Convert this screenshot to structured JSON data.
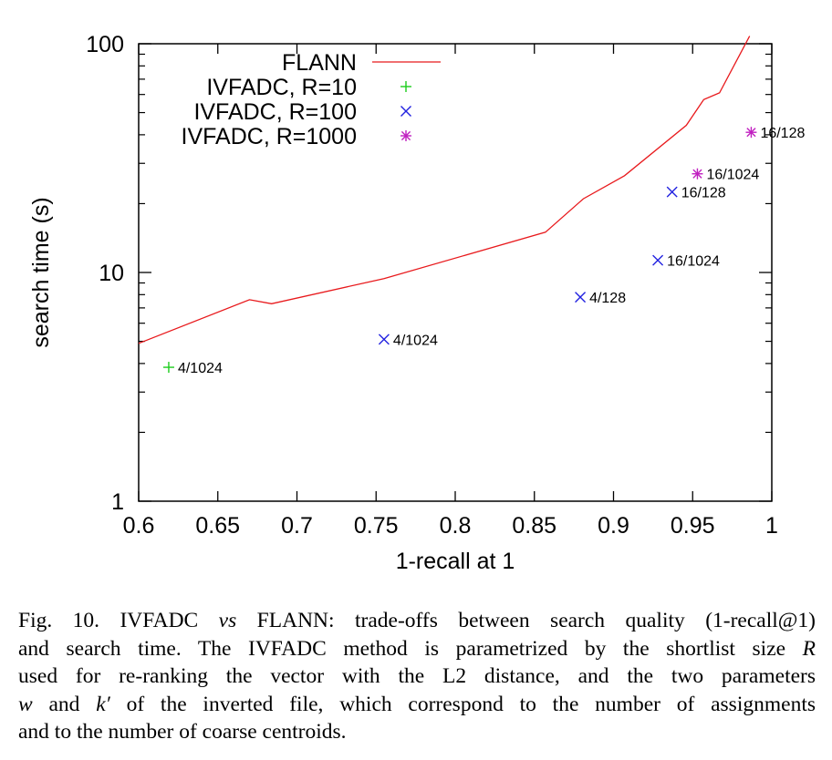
{
  "chart_data": {
    "type": "scatter",
    "xlabel": "1-recall at 1",
    "ylabel": "search time (s)",
    "xlim": [
      0.6,
      1.0
    ],
    "ylim": [
      1,
      100
    ],
    "yscale": "log",
    "grid": false,
    "legend_position": "top-left",
    "x_ticks": [
      "0.6",
      "0.65",
      "0.7",
      "0.75",
      "0.8",
      "0.85",
      "0.9",
      "0.95",
      "1"
    ],
    "x_tick_values": [
      0.6,
      0.65,
      0.7,
      0.75,
      0.8,
      0.85,
      0.9,
      0.95,
      1.0
    ],
    "y_ticks": [
      "1",
      "10",
      "100"
    ],
    "y_tick_values": [
      1,
      10,
      100
    ],
    "series": [
      {
        "name": "FLANN",
        "kind": "line",
        "color": "#e8191c",
        "points": [
          [
            0.6,
            4.9
          ],
          [
            0.67,
            7.6
          ],
          [
            0.684,
            7.3
          ],
          [
            0.755,
            9.4
          ],
          [
            0.857,
            15.0
          ],
          [
            0.881,
            21.0
          ],
          [
            0.907,
            26.5
          ],
          [
            0.946,
            44.0
          ],
          [
            0.957,
            57.0
          ],
          [
            0.967,
            61.0
          ],
          [
            0.986,
            108.0
          ]
        ]
      },
      {
        "name": "IVFADC, R=10",
        "kind": "marker",
        "marker": "plus",
        "color": "#1ccc1c",
        "points": [
          {
            "x": 0.619,
            "y": 3.85,
            "label": "4/1024"
          }
        ]
      },
      {
        "name": "IVFADC, R=100",
        "kind": "marker",
        "marker": "cross",
        "color": "#2222e0",
        "points": [
          {
            "x": 0.755,
            "y": 5.1,
            "label": "4/1024"
          },
          {
            "x": 0.879,
            "y": 7.8,
            "label": "4/128"
          },
          {
            "x": 0.928,
            "y": 11.3,
            "label": "16/1024"
          },
          {
            "x": 0.937,
            "y": 22.5,
            "label": "16/128"
          }
        ]
      },
      {
        "name": "IVFADC, R=1000",
        "kind": "marker",
        "marker": "star",
        "color": "#c020c0",
        "points": [
          {
            "x": 0.953,
            "y": 27.0,
            "label": "16/1024"
          },
          {
            "x": 0.987,
            "y": 41.0,
            "label": "16/128"
          }
        ]
      }
    ]
  },
  "caption": {
    "prefix": "Fig. 10.   IVFADC ",
    "vs": "vs",
    "line1_rest": " FLANN: trade-offs between search quality (1-recall@1)",
    "line2": "and search time. The IVFADC method is parametrized by the shortlist size ",
    "R": "R",
    "line3": "used for re-ranking the vector with the L2 distance, and the two parameters",
    "w": "w",
    "and_text": " and ",
    "k": "k′",
    "line4_rest": " of the inverted file, which correspond to the number of assignments",
    "line5": "and to the number of coarse centroids."
  }
}
